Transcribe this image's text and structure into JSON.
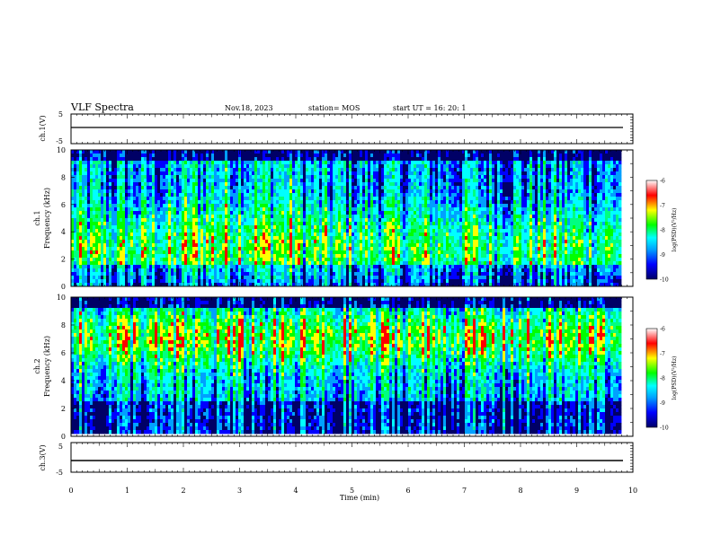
{
  "header": {
    "title": "VLF Spectra",
    "date": "Nov.18, 2023",
    "station": "station= MOS",
    "start": "start  UT =   16: 20: 1"
  },
  "colors": {
    "spectrogram_scale": [
      "#000066",
      "#0000ff",
      "#00a0ff",
      "#00ffff",
      "#00ff80",
      "#00ff00",
      "#ffff00",
      "#ff0000",
      "#ffffff"
    ]
  },
  "chart_data": [
    {
      "type": "line",
      "name_label": "ch.1(V)",
      "y_ticks": [
        "5",
        "-5"
      ],
      "ylim": [
        -5,
        5
      ],
      "baseline": 0
    },
    {
      "type": "heatmap",
      "ylabel": "ch.1\nFrequency (kHz)",
      "y_ticks": [
        "0",
        "2",
        "4",
        "6",
        "8",
        "10"
      ],
      "ylim": [
        0,
        10
      ],
      "xlim": [
        0,
        10
      ],
      "colorbar": {
        "label": "log(PSD)(V²/Hz)",
        "ticks": [
          "-6",
          "-7",
          "-8",
          "-9",
          "-10"
        ],
        "range": [
          -10,
          -6
        ]
      },
      "description_hint": "broadband activity 0-9.5 kHz, stronger in 2-4 min",
      "data_end_min": 9.83
    },
    {
      "type": "heatmap",
      "ylabel": "ch.2\nFrequency (kHz)",
      "y_ticks": [
        "0",
        "2",
        "4",
        "6",
        "8",
        "10"
      ],
      "ylim": [
        0,
        10
      ],
      "xlim": [
        0,
        10
      ],
      "colorbar": {
        "label": "log(PSD)(V²/Hz)",
        "ticks": [
          "-6",
          "-7",
          "-8",
          "-9",
          "-10"
        ],
        "range": [
          -10,
          -6
        ]
      },
      "data_end_min": 9.83
    },
    {
      "type": "line",
      "name_label": "ch.3(V)",
      "y_ticks": [
        "5",
        "-5"
      ],
      "ylim": [
        -5,
        5
      ],
      "baseline": 0
    }
  ],
  "x_axis": {
    "label": "Time  (min)",
    "ticks": [
      "0",
      "1",
      "2",
      "3",
      "4",
      "5",
      "6",
      "7",
      "8",
      "9",
      "10"
    ],
    "range": [
      0,
      10
    ]
  }
}
